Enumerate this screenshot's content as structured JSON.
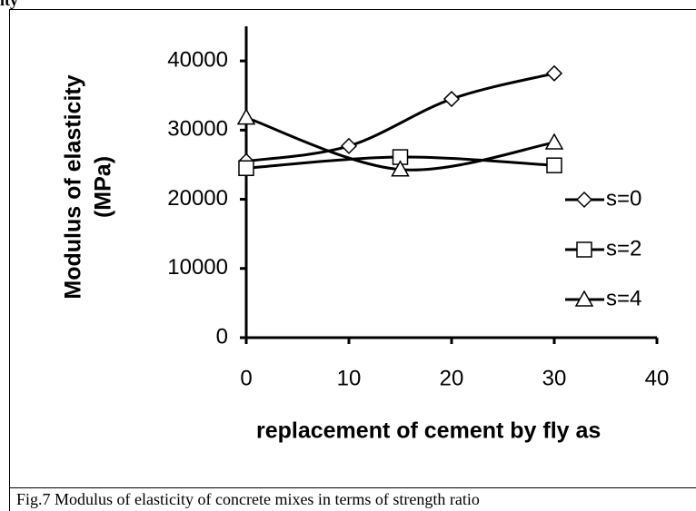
{
  "chart_data": {
    "type": "line",
    "heading": "ity",
    "caption": "Fig.7 Modulus of elasticity of concrete mixes in terms of strength ratio",
    "ylabel": [
      "Modulus of elasticity",
      "(MPa)"
    ],
    "xlabel": "replacement of cement by fly as",
    "xlim": [
      0,
      40
    ],
    "xticks": [
      0,
      10,
      20,
      30,
      40
    ],
    "ylim": [
      0,
      45000
    ],
    "yticks": [
      0,
      10000,
      20000,
      30000,
      40000
    ],
    "series": [
      {
        "name": "s=0",
        "color": "#000000",
        "marker": "diamond",
        "x": [
          0,
          10,
          20,
          30
        ],
        "values": [
          25500,
          27700,
          34500,
          38200
        ]
      },
      {
        "name": "s=2",
        "color": "#000000",
        "marker": "square",
        "x": [
          0,
          15,
          30
        ],
        "values": [
          24500,
          26100,
          24900
        ]
      },
      {
        "name": "s=4",
        "color": "#000000",
        "marker": "triangle",
        "x": [
          0,
          15,
          30
        ],
        "values": [
          31800,
          24300,
          28200
        ]
      }
    ]
  }
}
